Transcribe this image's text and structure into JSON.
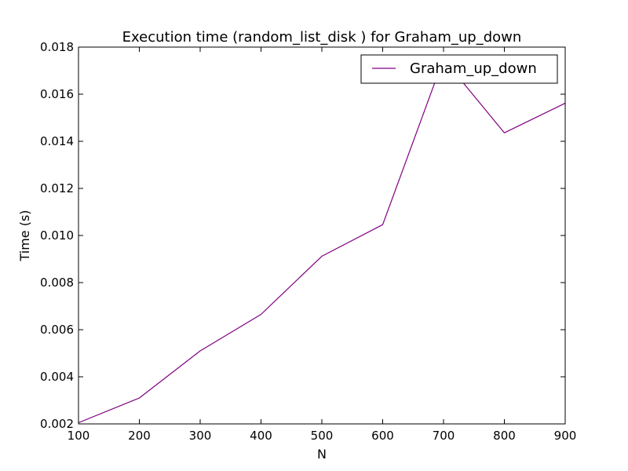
{
  "chart_data": {
    "type": "line",
    "title": "Execution time (random_list_disk ) for Graham_up_down",
    "xlabel": "N",
    "ylabel": "Time (s)",
    "xlim": [
      100,
      900
    ],
    "ylim": [
      0.002,
      0.018
    ],
    "x_ticks": [
      "100",
      "200",
      "300",
      "400",
      "500",
      "600",
      "700",
      "800",
      "900"
    ],
    "y_ticks": [
      "0.002",
      "0.004",
      "0.006",
      "0.008",
      "0.010",
      "0.012",
      "0.014",
      "0.016",
      "0.018"
    ],
    "grid": false,
    "legend_position": "top-right",
    "series": [
      {
        "name": "Graham_up_down",
        "color": "#800080",
        "x": [
          100,
          200,
          300,
          400,
          500,
          600,
          700,
          800,
          900
        ],
        "values": [
          0.00205,
          0.0031,
          0.0051,
          0.00665,
          0.00912,
          0.01046,
          0.0175,
          0.01436,
          0.01562
        ]
      }
    ]
  }
}
